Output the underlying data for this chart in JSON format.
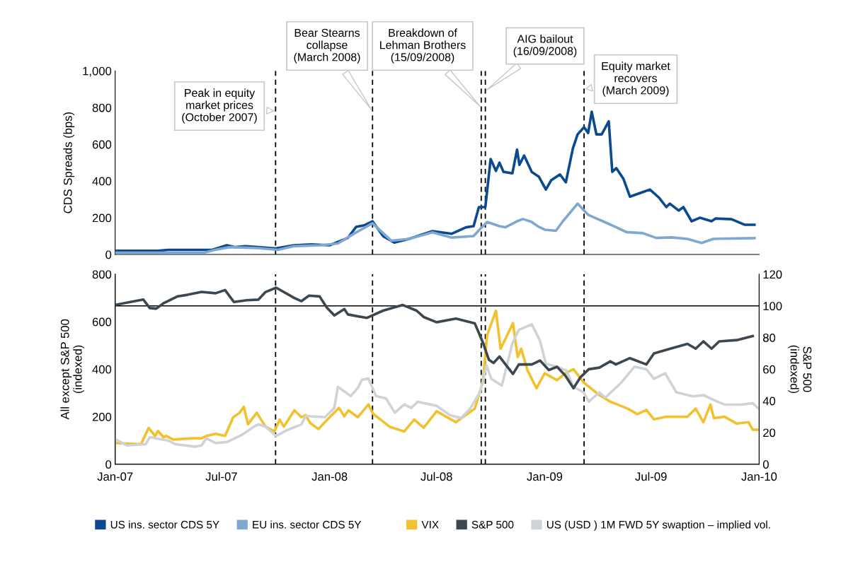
{
  "chart_data": [
    {
      "type": "line",
      "ylabel": "CDS Spreads (bps)",
      "xlim": [
        "2007-01-01",
        "2010-01-01"
      ],
      "ylim": [
        0,
        1000
      ],
      "yticks": [
        0,
        200,
        400,
        600,
        800,
        {
          "value": 1000,
          "label": "1,000"
        }
      ],
      "tick_labels": "y",
      "grid": false,
      "legend": "bottom",
      "line_style": "solid",
      "marker": "none",
      "ref_lines": [
        {
          "axis": "x",
          "value": "2007-10-01",
          "label": "Peak in equity\nmarket prices\n(October 2007)",
          "color": "#000000",
          "line_style": "dashed"
        },
        {
          "axis": "x",
          "value": "2008-03-14",
          "label": "Bear Stearns\ncollapse\n(March 2008)",
          "color": "#000000",
          "line_style": "dashed"
        },
        {
          "axis": "x",
          "value": "2008-09-15",
          "label": "Breakdown of\nLehman Brothers\n(15/09/2008)",
          "color": "#000000",
          "line_style": "dashed"
        },
        {
          "axis": "x",
          "value": "2008-09-22",
          "label": "AIG bailout\n(16/09/2008)",
          "color": "#000000",
          "line_style": "dashed"
        },
        {
          "axis": "x",
          "value": "2009-03-09",
          "label": "Equity market\nrecovers\n(March 2009)",
          "color": "#000000",
          "line_style": "dashed"
        }
      ],
      "series": [
        {
          "name": "US ins. sector CDS 5Y",
          "color": "#0b4a8f",
          "x": [
            "2007-01-01",
            "2007-03-15",
            "2007-04-01",
            "2007-06-15",
            "2007-07-10",
            "2007-07-25",
            "2007-08-10",
            "2007-09-01",
            "2007-10-01",
            "2007-11-01",
            "2007-12-01",
            "2008-01-01",
            "2008-02-01",
            "2008-02-15",
            "2008-03-01",
            "2008-03-14",
            "2008-04-01",
            "2008-04-20",
            "2008-05-15",
            "2008-06-24",
            "2008-07-27",
            "2008-08-20",
            "2008-09-02",
            "2008-09-11",
            "2008-09-22",
            "2008-10-01",
            "2008-10-10",
            "2008-10-16",
            "2008-10-23",
            "2008-11-07",
            "2008-11-15",
            "2008-11-19",
            "2008-11-27",
            "2008-12-10",
            "2008-12-22",
            "2009-01-03",
            "2009-01-12",
            "2009-01-27",
            "2009-02-06",
            "2009-02-18",
            "2009-02-26",
            "2009-03-09",
            "2009-03-16",
            "2009-03-22",
            "2009-03-30",
            "2009-04-08",
            "2009-04-20",
            "2009-04-26",
            "2009-05-03",
            "2009-05-15",
            "2009-05-26",
            "2009-06-17",
            "2009-06-29",
            "2009-07-15",
            "2009-07-27",
            "2009-08-02",
            "2009-08-17",
            "2009-08-25",
            "2009-09-08",
            "2009-09-22",
            "2009-10-12",
            "2009-10-19",
            "2009-11-15",
            "2009-12-07",
            "2009-12-24"
          ],
          "values": [
            20,
            20,
            25,
            25,
            50,
            40,
            45,
            40,
            33,
            50,
            55,
            50,
            90,
            150,
            160,
            181,
            100,
            65,
            85,
            127,
            113,
            148,
            154,
            258,
            258,
            520,
            455,
            500,
            450,
            442,
            571,
            488,
            539,
            450,
            424,
            354,
            404,
            436,
            393,
            578,
            654,
            693,
            662,
            778,
            654,
            654,
            725,
            450,
            470,
            412,
            315,
            340,
            354,
            308,
            258,
            277,
            239,
            258,
            181,
            200,
            181,
            196,
            192,
            162,
            162
          ]
        },
        {
          "name": "EU ins. sector CDS 5Y",
          "color": "#7fa8d0",
          "x": [
            "2007-01-01",
            "2007-06-01",
            "2007-06-20",
            "2007-07-15",
            "2007-09-01",
            "2007-10-05",
            "2007-11-01",
            "2007-12-15",
            "2008-01-15",
            "2008-02-15",
            "2008-03-14",
            "2008-04-15",
            "2008-05-15",
            "2008-06-24",
            "2008-07-27",
            "2008-09-02",
            "2008-09-12",
            "2008-09-25",
            "2008-10-16",
            "2008-10-26",
            "2008-11-15",
            "2008-11-25",
            "2008-12-10",
            "2008-12-20",
            "2009-01-01",
            "2009-01-20",
            "2009-02-01",
            "2009-02-26",
            "2009-03-16",
            "2009-03-30",
            "2009-04-10",
            "2009-05-03",
            "2009-05-20",
            "2009-06-17",
            "2009-07-10",
            "2009-08-05",
            "2009-09-01",
            "2009-09-25",
            "2009-10-15",
            "2009-12-24"
          ],
          "values": [
            10,
            10,
            25,
            40,
            35,
            25,
            45,
            50,
            60,
            120,
            170,
            75,
            85,
            120,
            92,
            100,
            135,
            177,
            154,
            148,
            181,
            193,
            177,
            154,
            135,
            129,
            181,
            277,
            216,
            196,
            181,
            148,
            122,
            116,
            90,
            93,
            85,
            63,
            85,
            89
          ]
        }
      ]
    },
    {
      "type": "line",
      "ylabel": "All except S&P 500\n(indexed)",
      "y2label": "S&P 500\n(indexed)",
      "xlim": [
        "2007-01-01",
        "2010-01-01"
      ],
      "xticks": [
        {
          "value": "2007-01-01",
          "label": "Jan-07"
        },
        {
          "value": "2007-07-01",
          "label": "Jul-07"
        },
        {
          "value": "2008-01-01",
          "label": "Jan-08"
        },
        {
          "value": "2008-07-01",
          "label": "Jul-08"
        },
        {
          "value": "2009-01-01",
          "label": "Jan-09"
        },
        {
          "value": "2009-07-01",
          "label": "Jul-09"
        },
        {
          "value": "2010-01-01",
          "label": "Jan-10"
        }
      ],
      "ylim": [
        0,
        800
      ],
      "yticks": [
        0,
        200,
        400,
        600,
        800
      ],
      "y2lim": [
        0,
        120
      ],
      "y2ticks": [
        0,
        20,
        40,
        60,
        80,
        100,
        120
      ],
      "grid": false,
      "legend": "bottom",
      "line_style": "solid",
      "marker": "none",
      "ref_lines": [
        {
          "axis": "x",
          "value": "2007-10-01",
          "color": "#000000",
          "line_style": "dashed"
        },
        {
          "axis": "x",
          "value": "2008-03-14",
          "color": "#000000",
          "line_style": "dashed"
        },
        {
          "axis": "x",
          "value": "2008-09-15",
          "color": "#000000",
          "line_style": "dashed"
        },
        {
          "axis": "x",
          "value": "2008-09-22",
          "color": "#000000",
          "line_style": "dashed"
        },
        {
          "axis": "x",
          "value": "2009-03-09",
          "color": "#000000",
          "line_style": "dashed"
        },
        {
          "axis": "y2",
          "value": 100,
          "color": "#000000",
          "line_style": "solid"
        }
      ],
      "series": [
        {
          "name": "VIX",
          "color": "#f2c12e",
          "x": [
            "2007-01-02",
            "2007-02-14",
            "2007-02-27",
            "2007-03-10",
            "2007-03-15",
            "2007-03-24",
            "2007-03-29",
            "2007-04-10",
            "2007-05-11",
            "2007-05-28",
            "2007-06-05",
            "2007-06-21",
            "2007-07-07",
            "2007-07-21",
            "2007-08-01",
            "2007-08-08",
            "2007-08-15",
            "2007-08-30",
            "2007-09-14",
            "2007-09-29",
            "2007-10-08",
            "2007-10-15",
            "2007-11-02",
            "2007-11-14",
            "2007-11-21",
            "2007-11-29",
            "2007-12-13",
            "2008-01-01",
            "2008-01-17",
            "2008-01-26",
            "2008-02-02",
            "2008-02-18",
            "2008-03-07",
            "2008-03-15",
            "2008-04-12",
            "2008-05-07",
            "2008-05-24",
            "2008-06-09",
            "2008-07-01",
            "2008-08-03",
            "2008-09-04",
            "2008-09-18",
            "2008-09-25",
            "2008-10-10",
            "2008-10-18",
            "2008-11-08",
            "2008-11-16",
            "2008-11-22",
            "2008-12-03",
            "2008-12-18",
            "2009-01-01",
            "2009-01-22",
            "2009-02-05",
            "2009-02-19",
            "2009-03-09",
            "2009-04-04",
            "2009-04-23",
            "2009-05-22",
            "2009-06-08",
            "2009-06-23",
            "2009-07-06",
            "2009-07-27",
            "2009-09-01",
            "2009-09-15",
            "2009-09-28",
            "2009-10-10",
            "2009-10-16",
            "2009-11-03",
            "2009-11-24",
            "2009-12-14",
            "2009-12-21",
            "2009-12-31"
          ],
          "values": [
            89,
            84,
            153,
            119,
            140,
            114,
            119,
            104,
            109,
            109,
            119,
            128,
            119,
            198,
            217,
            242,
            168,
            217,
            158,
            138,
            188,
            158,
            227,
            198,
            207,
            173,
            148,
            198,
            237,
            202,
            227,
            198,
            252,
            212,
            158,
            138,
            188,
            154,
            223,
            177,
            234,
            349,
            543,
            646,
            486,
            594,
            451,
            486,
            394,
            320,
            383,
            354,
            383,
            400,
            343,
            291,
            263,
            234,
            211,
            229,
            189,
            200,
            200,
            234,
            177,
            251,
            194,
            200,
            171,
            177,
            145,
            145
          ]
        },
        {
          "name": "S&P 500",
          "color": "#3d4750",
          "axis": "y2",
          "x": [
            "2007-01-02",
            "2007-02-18",
            "2007-03-01",
            "2007-03-12",
            "2007-03-24",
            "2007-04-17",
            "2007-05-04",
            "2007-05-28",
            "2007-06-21",
            "2007-07-07",
            "2007-07-22",
            "2007-08-13",
            "2007-09-02",
            "2007-09-14",
            "2007-10-02",
            "2007-11-02",
            "2007-11-14",
            "2007-11-27",
            "2007-12-15",
            "2007-12-27",
            "2008-01-09",
            "2008-01-26",
            "2008-02-01",
            "2008-03-04",
            "2008-04-01",
            "2008-05-04",
            "2008-05-28",
            "2008-06-09",
            "2008-07-01",
            "2008-08-03",
            "2008-09-04",
            "2008-09-18",
            "2008-09-28",
            "2008-10-06",
            "2008-10-16",
            "2008-11-08",
            "2008-11-18",
            "2008-12-10",
            "2008-12-24",
            "2009-01-08",
            "2009-01-22",
            "2009-02-05",
            "2009-02-19",
            "2009-03-03",
            "2009-03-17",
            "2009-04-04",
            "2009-04-23",
            "2009-05-02",
            "2009-05-26",
            "2009-06-23",
            "2009-07-06",
            "2009-08-03",
            "2009-09-01",
            "2009-09-15",
            "2009-09-28",
            "2009-10-12",
            "2009-10-25",
            "2009-11-24",
            "2009-12-21"
          ],
          "values": [
            100.7,
            104,
            98.6,
            98.3,
            101.6,
            106,
            107,
            108.8,
            108,
            110,
            102.5,
            103.6,
            104,
            108.8,
            111.5,
            105,
            103,
            106.5,
            106,
            99,
            94,
            98,
            94.6,
            92.4,
            97,
            100.6,
            97,
            93,
            89.7,
            92,
            89,
            76.7,
            66,
            64,
            68,
            57,
            63,
            63,
            65.5,
            59.5,
            61.5,
            56,
            48,
            55,
            60,
            61,
            65,
            63,
            67,
            63,
            70,
            73,
            76,
            73,
            77.6,
            73,
            77.6,
            78.4,
            81
          ]
        },
        {
          "name": "US (USD ) 1M FWD 5Y swaption – implied vol.",
          "color": "#d0d3d6",
          "x": [
            "2007-01-02",
            "2007-01-21",
            "2007-02-22",
            "2007-03-01",
            "2007-04-02",
            "2007-04-14",
            "2007-05-16",
            "2007-05-28",
            "2007-06-05",
            "2007-06-21",
            "2007-07-11",
            "2007-08-05",
            "2007-08-25",
            "2007-09-02",
            "2007-09-14",
            "2007-10-02",
            "2007-10-20",
            "2007-11-14",
            "2007-11-21",
            "2007-12-24",
            "2008-01-09",
            "2008-01-15",
            "2008-02-06",
            "2008-02-18",
            "2008-02-25",
            "2008-03-07",
            "2008-03-20",
            "2008-04-06",
            "2008-04-21",
            "2008-05-07",
            "2008-05-19",
            "2008-05-30",
            "2008-07-01",
            "2008-07-24",
            "2008-08-12",
            "2008-08-27",
            "2008-09-13",
            "2008-09-24",
            "2008-10-02",
            "2008-10-20",
            "2008-11-07",
            "2008-11-18",
            "2008-12-10",
            "2008-12-24",
            "2009-01-03",
            "2009-01-22",
            "2009-02-07",
            "2009-02-19",
            "2009-03-08",
            "2009-03-17",
            "2009-04-04",
            "2009-04-14",
            "2009-05-11",
            "2009-06-03",
            "2009-06-23",
            "2009-07-06",
            "2009-07-25",
            "2009-08-13",
            "2009-09-10",
            "2009-09-28",
            "2009-10-17",
            "2009-11-03",
            "2009-12-01",
            "2009-12-21",
            "2009-12-31"
          ],
          "values": [
            104,
            79,
            84,
            114,
            99,
            84,
            74,
            79,
            109,
            89,
            94,
            124,
            158,
            168,
            158,
            119,
            143,
            168,
            203,
            198,
            237,
            326,
            287,
            321,
            356,
            361,
            287,
            277,
            217,
            252,
            237,
            263,
            246,
            206,
            194,
            234,
            303,
            417,
            360,
            331,
            509,
            566,
            589,
            520,
            423,
            411,
            394,
            326,
            303,
            263,
            303,
            280,
            343,
            411,
            400,
            360,
            383,
            303,
            286,
            291,
            269,
            251,
            251,
            257,
            234
          ]
        }
      ]
    }
  ]
}
